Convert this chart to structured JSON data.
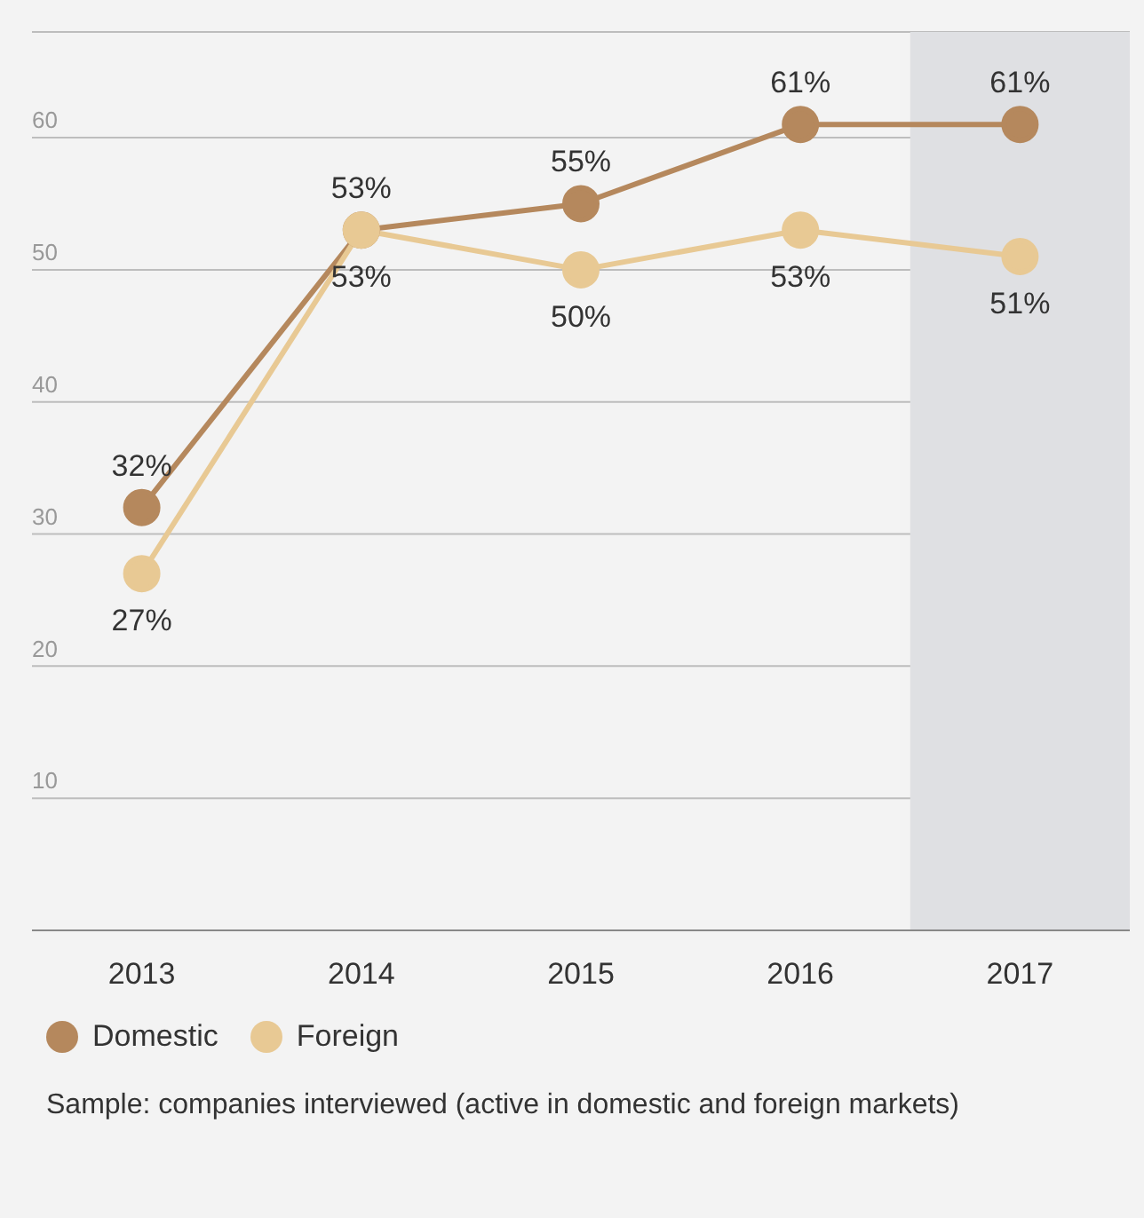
{
  "chart_data": {
    "type": "line",
    "categories": [
      "2013",
      "2014",
      "2015",
      "2016",
      "2017"
    ],
    "series": [
      {
        "name": "Domestic",
        "color": "#b5885d",
        "values": [
          32,
          53,
          55,
          61,
          61
        ],
        "value_labels": [
          "32%",
          "53%",
          "55%",
          "61%",
          "61%"
        ]
      },
      {
        "name": "Foreign",
        "color": "#e8c994",
        "values": [
          27,
          53,
          50,
          53,
          51
        ],
        "value_labels": [
          "27%",
          "53%",
          "50%",
          "53%",
          "51%"
        ]
      }
    ],
    "ylim": [
      0,
      68
    ],
    "yticks": [
      {
        "value": 0,
        "label": null
      },
      10,
      20,
      30,
      40,
      50,
      60
    ],
    "grid": "y",
    "marker": "circle",
    "line_style": "solid",
    "legend": "bottom",
    "bands": [
      {
        "axis": "x",
        "from": "2017",
        "to": "2017",
        "color": "#dfe0e3"
      }
    ],
    "annotations": [
      "Sample: companies interviewed (active in domestic and foreign markets)"
    ]
  }
}
